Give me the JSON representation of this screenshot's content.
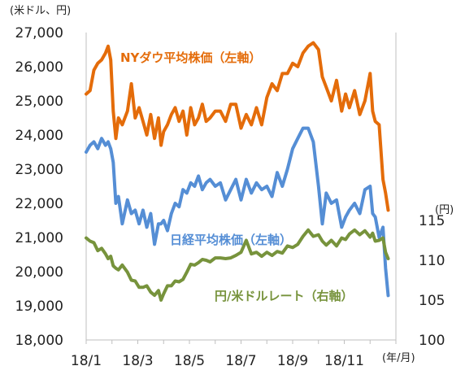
{
  "chart_data": {
    "type": "line",
    "left_axis_unit_label": "(米ドル、円)",
    "right_axis_unit_label": "(円)",
    "x_unit_label": "(年/月)",
    "x_ticks": [
      "18/1",
      "18/3",
      "18/5",
      "18/7",
      "18/9",
      "18/11"
    ],
    "x_range": [
      0,
      12
    ],
    "y_left_range": [
      18000,
      27000
    ],
    "y_left_ticks": [
      "18,000",
      "19,000",
      "20,000",
      "21,000",
      "22,000",
      "23,000",
      "24,000",
      "25,000",
      "26,000",
      "27,000"
    ],
    "y_right_range": [
      100,
      115
    ],
    "y_right_ticks": [
      "100",
      "105",
      "110",
      "115"
    ],
    "grid": false,
    "colors": {
      "dow": "#E46C0A",
      "nikkei": "#558ED5",
      "usdjpy": "#77933C"
    },
    "series": [
      {
        "key": "dow",
        "name": "NYダウ平均株価（左軸）",
        "axis": "left",
        "x": [
          0,
          0.15,
          0.3,
          0.45,
          0.6,
          0.75,
          0.85,
          0.95,
          1.05,
          1.15,
          1.25,
          1.4,
          1.6,
          1.75,
          1.9,
          2.05,
          2.2,
          2.35,
          2.5,
          2.65,
          2.8,
          2.9,
          3.0,
          3.15,
          3.3,
          3.45,
          3.6,
          3.75,
          3.9,
          4.05,
          4.2,
          4.35,
          4.5,
          4.65,
          4.8,
          5.0,
          5.2,
          5.4,
          5.6,
          5.8,
          6.0,
          6.2,
          6.4,
          6.6,
          6.8,
          7.0,
          7.2,
          7.4,
          7.6,
          7.8,
          8.0,
          8.2,
          8.4,
          8.6,
          8.8,
          9.0,
          9.15,
          9.3,
          9.5,
          9.7,
          9.9,
          10.05,
          10.2,
          10.4,
          10.6,
          10.8,
          11.0,
          11.1,
          11.2,
          11.35,
          11.5,
          11.6,
          11.7
        ],
        "y": [
          25200,
          25300,
          25900,
          26100,
          26200,
          26400,
          26600,
          26200,
          24700,
          23900,
          24500,
          24300,
          24700,
          25500,
          24500,
          24800,
          24400,
          24000,
          24600,
          23900,
          24500,
          23700,
          24100,
          24300,
          24600,
          24800,
          24400,
          24700,
          24000,
          24800,
          24300,
          24500,
          24900,
          24400,
          24500,
          24700,
          24700,
          24400,
          24900,
          24900,
          24200,
          24600,
          24300,
          24800,
          24300,
          25100,
          25500,
          25300,
          25800,
          25800,
          26100,
          26000,
          26400,
          26600,
          26700,
          26500,
          25700,
          25400,
          25000,
          25600,
          24700,
          25200,
          24800,
          25300,
          24600,
          25000,
          25800,
          24700,
          24400,
          24300,
          22700,
          22300,
          21800
        ]
      },
      {
        "key": "nikkei",
        "name": "日経平均株価（左軸）",
        "axis": "left",
        "x": [
          0,
          0.15,
          0.3,
          0.45,
          0.6,
          0.75,
          0.85,
          0.95,
          1.05,
          1.15,
          1.25,
          1.4,
          1.6,
          1.75,
          1.9,
          2.05,
          2.2,
          2.35,
          2.5,
          2.65,
          2.8,
          2.9,
          3.0,
          3.15,
          3.3,
          3.45,
          3.6,
          3.75,
          3.9,
          4.05,
          4.2,
          4.35,
          4.5,
          4.65,
          4.8,
          5.0,
          5.2,
          5.4,
          5.6,
          5.8,
          6.0,
          6.2,
          6.4,
          6.6,
          6.8,
          7.0,
          7.2,
          7.4,
          7.6,
          7.8,
          8.0,
          8.2,
          8.4,
          8.6,
          8.8,
          9.0,
          9.15,
          9.3,
          9.5,
          9.7,
          9.9,
          10.05,
          10.2,
          10.4,
          10.6,
          10.8,
          11.0,
          11.1,
          11.2,
          11.35,
          11.5,
          11.6,
          11.7
        ],
        "y": [
          23500,
          23700,
          23800,
          23600,
          23900,
          23700,
          23800,
          23600,
          23200,
          22000,
          22200,
          21400,
          22100,
          21700,
          21800,
          21400,
          21800,
          21300,
          21700,
          20800,
          21400,
          21400,
          21500,
          21200,
          21700,
          22000,
          21900,
          22400,
          22300,
          22600,
          22500,
          22800,
          22400,
          22600,
          22700,
          22500,
          22600,
          22100,
          22400,
          22700,
          22100,
          22700,
          22300,
          22600,
          22400,
          22500,
          22200,
          22900,
          22500,
          23000,
          23600,
          23900,
          24200,
          24200,
          23800,
          22500,
          21400,
          22300,
          22000,
          22100,
          21300,
          21600,
          21800,
          22000,
          21700,
          22400,
          22500,
          21700,
          21600,
          21000,
          21300,
          20100,
          19300
        ]
      },
      {
        "key": "usdjpy",
        "name": "円/米ドルレート（右軸）",
        "axis": "right",
        "x": [
          0,
          0.15,
          0.3,
          0.45,
          0.6,
          0.75,
          0.85,
          0.95,
          1.05,
          1.15,
          1.25,
          1.4,
          1.6,
          1.75,
          1.9,
          2.05,
          2.2,
          2.35,
          2.5,
          2.65,
          2.8,
          2.9,
          3.0,
          3.15,
          3.3,
          3.45,
          3.6,
          3.75,
          3.9,
          4.05,
          4.2,
          4.35,
          4.5,
          4.65,
          4.8,
          5.0,
          5.2,
          5.4,
          5.6,
          5.8,
          6.0,
          6.2,
          6.4,
          6.6,
          6.8,
          7.0,
          7.2,
          7.4,
          7.6,
          7.8,
          8.0,
          8.2,
          8.4,
          8.6,
          8.8,
          9.0,
          9.15,
          9.3,
          9.5,
          9.7,
          9.9,
          10.05,
          10.2,
          10.4,
          10.6,
          10.8,
          11.0,
          11.1,
          11.2,
          11.35,
          11.5,
          11.6,
          11.7
        ],
        "y": [
          112.8,
          112.4,
          112.2,
          111.2,
          111.5,
          110.8,
          110.2,
          110.5,
          109.3,
          109.0,
          108.8,
          109.4,
          108.5,
          107.5,
          107.4,
          106.6,
          106.6,
          106.8,
          106.0,
          105.6,
          106.2,
          105.0,
          105.8,
          106.8,
          106.8,
          107.4,
          107.3,
          107.6,
          108.5,
          109.5,
          109.4,
          109.7,
          110.1,
          110.0,
          109.8,
          110.3,
          110.3,
          110.2,
          110.3,
          110.6,
          111.0,
          112.5,
          110.8,
          111.0,
          110.5,
          111.0,
          110.6,
          111.1,
          110.9,
          111.8,
          111.6,
          112.0,
          113.0,
          113.8,
          113.0,
          113.2,
          112.4,
          111.9,
          112.5,
          111.8,
          112.8,
          112.6,
          113.3,
          113.8,
          113.2,
          113.7,
          112.9,
          113.4,
          112.4,
          112.5,
          112.8,
          111.0,
          110.2
        ]
      }
    ]
  }
}
